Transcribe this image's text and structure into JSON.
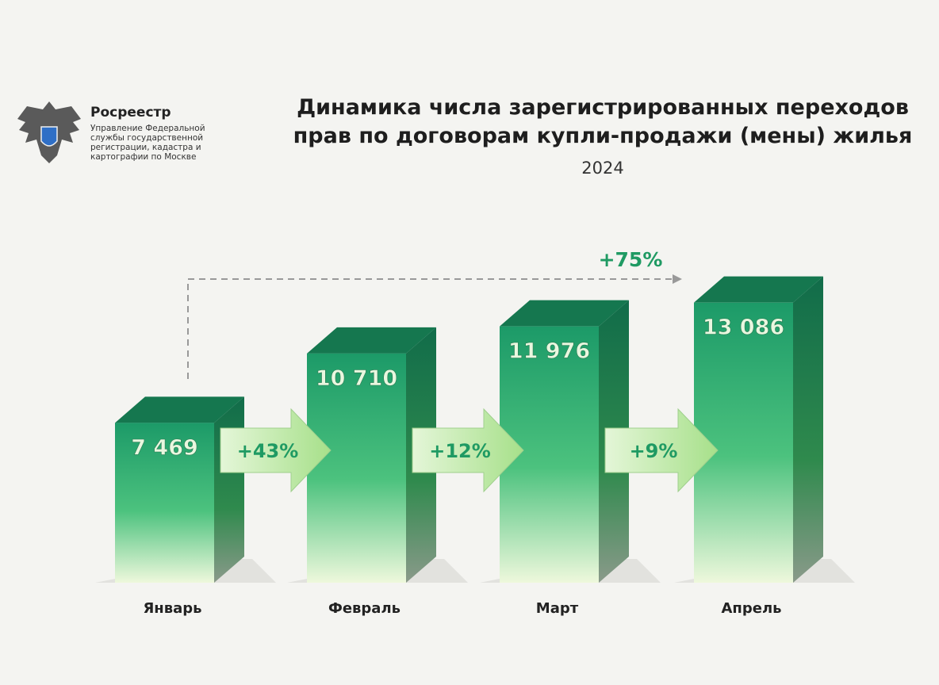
{
  "brand": "Росреестр",
  "organization": "Управление Федеральной службы государственной регистрации, кадастра и картографии по Москве",
  "chart_data": {
    "type": "bar3d",
    "title": "Динамика числа зарегистрированных переходов прав по договорам купли-продажи (мены) жилья",
    "subtitle": "2024",
    "categories": [
      "Январь",
      "Февраль",
      "Март",
      "Апрель"
    ],
    "values": [
      7469,
      10710,
      11976,
      13086
    ],
    "value_labels": [
      "7 469",
      "10 710",
      "11 976",
      "13 086"
    ],
    "growth_labels": [
      "+43%",
      "+12%",
      "+9%"
    ],
    "total_growth_label": "+75%",
    "color": "#1fa36e"
  }
}
